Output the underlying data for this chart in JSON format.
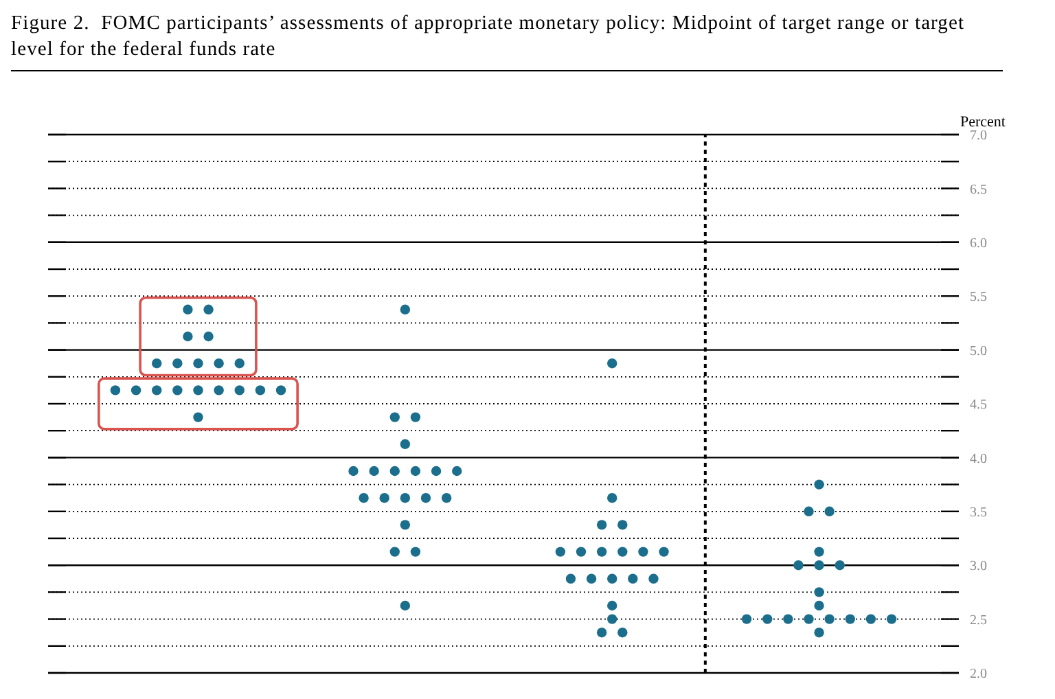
{
  "chart_data": {
    "type": "scatter",
    "title": "Figure 2.  FOMC participants’ assessments of appropriate monetary policy: Midpoint of target range or target level for the federal funds rate",
    "ylabel": "Percent",
    "categories": [
      null,
      null,
      null,
      null,
      null,
      null,
      null,
      null,
      null,
      null,
      null,
      null,
      null,
      null,
      null,
      null,
      null,
      null,
      null,
      null,
      null,
      null,
      null,
      null,
      null,
      null,
      null,
      null,
      null,
      null,
      null,
      null,
      null,
      null,
      null,
      null,
      null,
      null,
      null,
      null,
      null,
      null,
      null,
      null,
      null,
      null,
      null,
      null,
      null,
      null,
      null,
      null,
      null,
      null,
      null,
      null,
      null,
      null,
      null,
      null,
      null,
      null,
      null,
      null,
      null,
      null,
      null,
      null,
      null,
      null,
      null,
      null,
      null,
      null,
      null,
      null,
      null,
      null,
      null,
      null,
      null,
      null,
      null,
      null,
      null,
      null,
      null,
      null
    ],
    "series": [
      {
        "color": "#1b6e8c",
        "values": [
          null,
          null,
          null,
          null,
          null,
          null,
          4.625,
          null,
          4.625,
          null,
          4.875,
          null,
          4.875,
          5.375,
          4.875,
          5.375,
          4.875,
          null,
          4.875,
          null,
          4.625,
          null,
          4.625,
          null,
          null,
          null,
          null,
          null,
          null,
          3.875,
          3.625,
          3.875,
          3.625,
          4.375,
          5.375,
          4.375,
          3.625,
          3.875,
          3.625,
          3.875,
          null,
          null,
          null,
          null,
          null,
          null,
          null,
          null,
          null,
          3.125,
          2.875,
          3.125,
          2.875,
          3.375,
          4.875,
          3.375,
          2.875,
          3.125,
          2.875,
          3.125,
          null,
          null,
          null,
          null,
          null,
          null,
          null,
          2.5,
          null,
          2.5,
          null,
          2.5,
          3.0,
          3.5,
          3.75,
          3.5,
          3.0,
          2.5,
          null,
          2.5,
          null,
          2.5,
          null,
          null,
          null,
          null,
          null,
          null
        ]
      },
      {
        "color": "#1b6e8c",
        "values": [
          null,
          null,
          null,
          null,
          null,
          null,
          null,
          null,
          null,
          null,
          4.625,
          null,
          4.625,
          5.125,
          4.625,
          5.125,
          4.625,
          null,
          4.625,
          null,
          null,
          null,
          null,
          null,
          null,
          null,
          null,
          null,
          null,
          null,
          null,
          null,
          null,
          3.875,
          4.125,
          3.875,
          null,
          null,
          null,
          null,
          null,
          null,
          null,
          null,
          null,
          null,
          null,
          null,
          null,
          null,
          null,
          null,
          null,
          3.125,
          3.625,
          3.125,
          null,
          null,
          null,
          null,
          null,
          null,
          null,
          null,
          null,
          null,
          null,
          null,
          null,
          null,
          null,
          null,
          null,
          2.5,
          3.125,
          2.5,
          null,
          null,
          null,
          null,
          null,
          null,
          null,
          null,
          null,
          null,
          null,
          null
        ]
      },
      {
        "color": "#1b6e8c",
        "values": [
          null,
          null,
          null,
          null,
          null,
          null,
          null,
          null,
          null,
          null,
          null,
          null,
          null,
          null,
          4.375,
          null,
          null,
          null,
          null,
          null,
          null,
          null,
          null,
          null,
          null,
          null,
          null,
          null,
          null,
          null,
          null,
          null,
          null,
          3.125,
          3.625,
          3.125,
          null,
          null,
          null,
          null,
          null,
          null,
          null,
          null,
          null,
          null,
          null,
          null,
          null,
          null,
          null,
          null,
          null,
          2.375,
          2.875,
          2.375,
          null,
          null,
          null,
          null,
          null,
          null,
          null,
          null,
          null,
          null,
          null,
          null,
          null,
          null,
          null,
          null,
          null,
          null,
          3.0,
          null,
          null,
          null,
          null,
          null,
          null,
          null,
          null,
          null,
          null,
          null,
          null,
          null
        ]
      },
      {
        "color": "#1b6e8c",
        "values": [
          null,
          null,
          null,
          null,
          null,
          null,
          null,
          null,
          null,
          null,
          null,
          null,
          null,
          null,
          null,
          null,
          null,
          null,
          null,
          null,
          null,
          null,
          null,
          null,
          null,
          null,
          null,
          null,
          null,
          null,
          null,
          null,
          null,
          null,
          3.375,
          null,
          null,
          null,
          null,
          null,
          null,
          null,
          null,
          null,
          null,
          null,
          null,
          null,
          null,
          null,
          null,
          null,
          null,
          null,
          2.625,
          null,
          null,
          null,
          null,
          null,
          null,
          null,
          null,
          null,
          null,
          null,
          null,
          null,
          null,
          null,
          null,
          null,
          null,
          null,
          2.75,
          null,
          null,
          null,
          null,
          null,
          null,
          null,
          null,
          null,
          null,
          null,
          null,
          null
        ]
      },
      {
        "color": "#1b6e8c",
        "values": [
          null,
          null,
          null,
          null,
          null,
          null,
          null,
          null,
          null,
          null,
          null,
          null,
          null,
          null,
          null,
          null,
          null,
          null,
          null,
          null,
          null,
          null,
          null,
          null,
          null,
          null,
          null,
          null,
          null,
          null,
          null,
          null,
          null,
          null,
          2.625,
          null,
          null,
          null,
          null,
          null,
          null,
          null,
          null,
          null,
          null,
          null,
          null,
          null,
          null,
          null,
          null,
          null,
          null,
          null,
          2.5,
          null,
          null,
          null,
          null,
          null,
          null,
          null,
          null,
          null,
          null,
          null,
          null,
          null,
          null,
          null,
          null,
          null,
          null,
          null,
          2.625,
          null,
          null,
          null,
          null,
          null,
          null,
          null,
          null,
          null,
          null,
          null,
          null,
          null
        ]
      },
      {
        "color": "#1b6e8c",
        "values": [
          null,
          null,
          null,
          null,
          null,
          null,
          null,
          null,
          null,
          null,
          null,
          null,
          null,
          null,
          null,
          null,
          null,
          null,
          null,
          null,
          null,
          null,
          null,
          null,
          null,
          null,
          null,
          null,
          null,
          null,
          null,
          null,
          null,
          null,
          null,
          null,
          null,
          null,
          null,
          null,
          null,
          null,
          null,
          null,
          null,
          null,
          null,
          null,
          null,
          null,
          null,
          null,
          null,
          null,
          null,
          null,
          null,
          null,
          null,
          null,
          null,
          null,
          null,
          null,
          null,
          null,
          null,
          null,
          null,
          null,
          null,
          null,
          null,
          null,
          2.375,
          null,
          null,
          null,
          null,
          null,
          null,
          null,
          null,
          null,
          null,
          null,
          null,
          null
        ]
      }
    ],
    "ylim": [
      2.0,
      7.0
    ],
    "yticks": [
      {
        "value": 2.0,
        "label": "2.0"
      },
      {
        "value": 2.25,
        "label": null
      },
      {
        "value": 2.5,
        "label": "2.5"
      },
      {
        "value": 2.75,
        "label": null
      },
      {
        "value": 3.0,
        "label": "3.0"
      },
      {
        "value": 3.25,
        "label": null
      },
      {
        "value": 3.5,
        "label": "3.5"
      },
      {
        "value": 3.75,
        "label": null
      },
      {
        "value": 4.0,
        "label": "4.0"
      },
      {
        "value": 4.25,
        "label": null
      },
      {
        "value": 4.5,
        "label": "4.5"
      },
      {
        "value": 4.75,
        "label": null
      },
      {
        "value": 5.0,
        "label": "5.0"
      },
      {
        "value": 5.25,
        "label": null
      },
      {
        "value": 5.5,
        "label": "5.5"
      },
      {
        "value": 5.75,
        "label": null
      },
      {
        "value": 6.0,
        "label": "6.0"
      },
      {
        "value": 6.25,
        "label": null
      },
      {
        "value": 6.5,
        "label": "6.5"
      },
      {
        "value": 6.75,
        "label": null
      },
      {
        "value": 7.0,
        "label": "7.0"
      }
    ],
    "grid": "y",
    "marker": "circle",
    "tick_labels": "y"
  }
}
